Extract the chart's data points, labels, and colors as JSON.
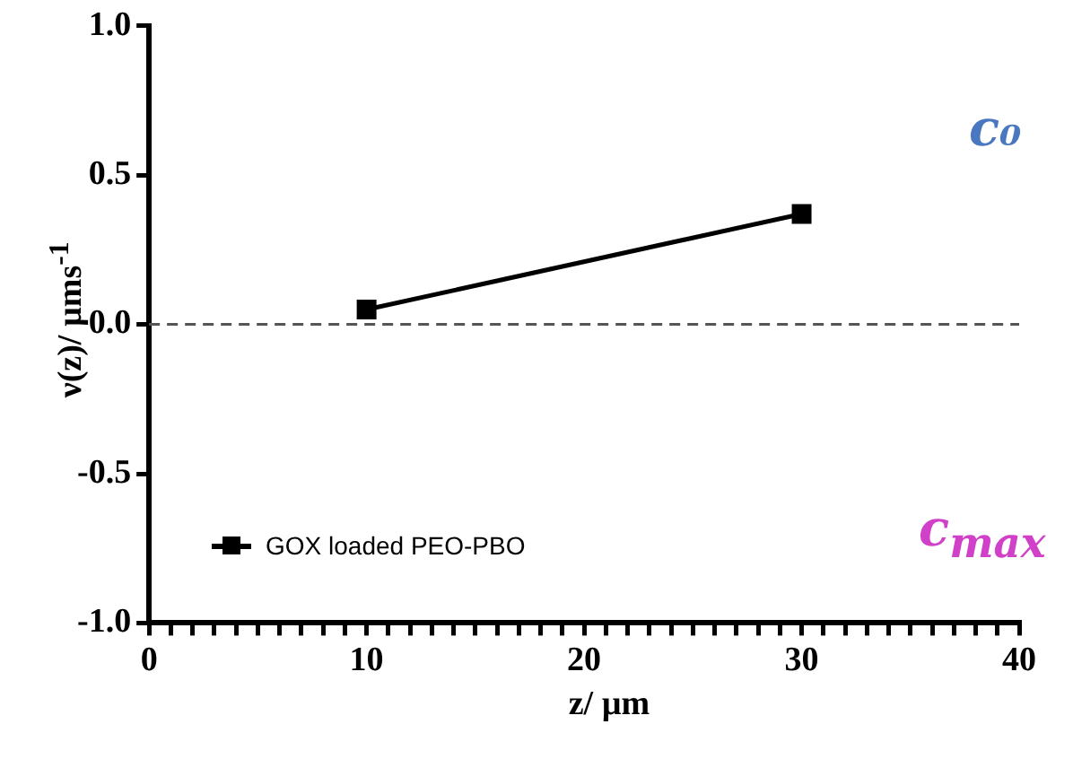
{
  "chart_data": {
    "type": "line",
    "xlabel": "z/ µm",
    "ylabel": "ν(z)/ µms$^{-1}$",
    "x": [
      10,
      30
    ],
    "series": [
      {
        "name": "GOX loaded PEO-PBO",
        "color": "#000000",
        "values": [
          0.05,
          0.37
        ]
      }
    ],
    "xlim": [
      0,
      40
    ],
    "xticks": [
      0,
      {
        "value": 1,
        "label": null
      },
      {
        "value": 2,
        "label": null
      },
      {
        "value": 3,
        "label": null
      },
      {
        "value": 4,
        "label": null
      },
      {
        "value": 5,
        "label": null
      },
      {
        "value": 6,
        "label": null
      },
      {
        "value": 7,
        "label": null
      },
      {
        "value": 8,
        "label": null
      },
      {
        "value": 9,
        "label": null
      },
      10,
      {
        "value": 11,
        "label": null
      },
      {
        "value": 12,
        "label": null
      },
      {
        "value": 13,
        "label": null
      },
      {
        "value": 14,
        "label": null
      },
      {
        "value": 15,
        "label": null
      },
      {
        "value": 16,
        "label": null
      },
      {
        "value": 17,
        "label": null
      },
      {
        "value": 18,
        "label": null
      },
      {
        "value": 19,
        "label": null
      },
      20,
      {
        "value": 21,
        "label": null
      },
      {
        "value": 22,
        "label": null
      },
      {
        "value": 23,
        "label": null
      },
      {
        "value": 24,
        "label": null
      },
      {
        "value": 25,
        "label": null
      },
      {
        "value": 26,
        "label": null
      },
      {
        "value": 27,
        "label": null
      },
      {
        "value": 28,
        "label": null
      },
      {
        "value": 29,
        "label": null
      },
      30,
      {
        "value": 31,
        "label": null
      },
      {
        "value": 32,
        "label": null
      },
      {
        "value": 33,
        "label": null
      },
      {
        "value": 34,
        "label": null
      },
      {
        "value": 35,
        "label": null
      },
      {
        "value": 36,
        "label": null
      },
      {
        "value": 37,
        "label": null
      },
      {
        "value": 38,
        "label": null
      },
      {
        "value": 39,
        "label": null
      },
      40
    ],
    "ylim": [
      -1,
      1
    ],
    "yticks": [
      {
        "value": -1,
        "label": "-1.0"
      },
      {
        "value": -0.5,
        "label": "-0.5"
      },
      {
        "value": 0,
        "label": "0.0"
      },
      {
        "value": 0.5,
        "label": "0.5"
      },
      {
        "value": 1,
        "label": "1.0"
      }
    ],
    "ref_lines": [
      {
        "axis": "y",
        "value": 0,
        "color": "#555555",
        "line_style": "dashed"
      }
    ],
    "annotations": [
      "c₀",
      "c$_{max}$"
    ],
    "legend": "bottom left",
    "grid": false,
    "marker": "square",
    "line_style": "solid"
  }
}
